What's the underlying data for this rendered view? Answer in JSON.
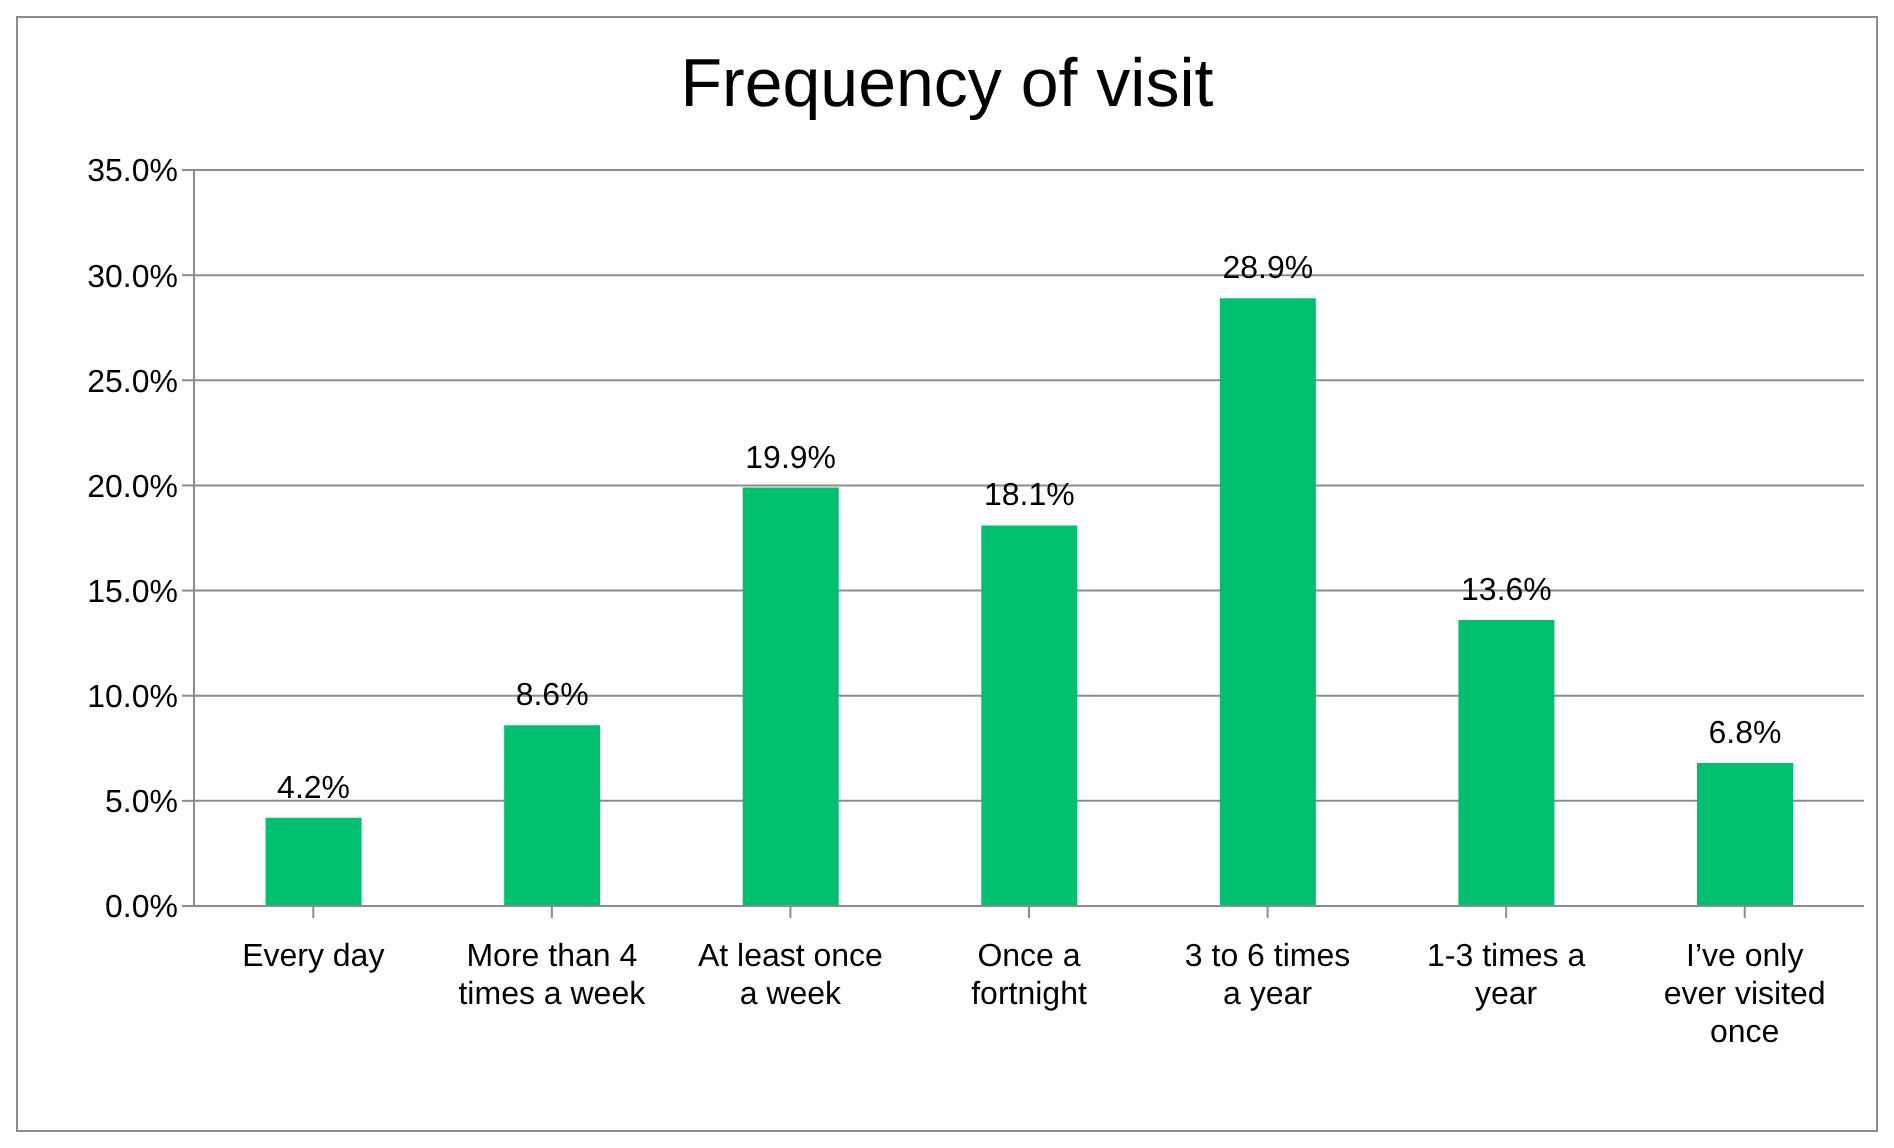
{
  "chart_data": {
    "type": "bar",
    "title": "Frequency of visit",
    "categories": [
      "Every day",
      "More than 4 times a week",
      "At least once a week",
      "Once a fortnight",
      "3 to 6 times a year",
      "1-3 times a year",
      "I’ve only ever visited once"
    ],
    "values": [
      4.2,
      8.6,
      19.9,
      18.1,
      28.9,
      13.6,
      6.8
    ],
    "value_labels": [
      "4.2%",
      "8.6%",
      "19.9%",
      "18.1%",
      "28.9%",
      "13.6%",
      "6.8%"
    ],
    "color": "#00c06f",
    "ylim": [
      0,
      35
    ],
    "yticks": [
      {
        "value": 0,
        "label": "0.0%"
      },
      {
        "value": 5,
        "label": "5.0%"
      },
      {
        "value": 10,
        "label": "10.0%"
      },
      {
        "value": 15,
        "label": "15.0%"
      },
      {
        "value": 20,
        "label": "20.0%"
      },
      {
        "value": 25,
        "label": "25.0%"
      },
      {
        "value": 30,
        "label": "30.0%"
      },
      {
        "value": 35,
        "label": "35.0%"
      }
    ],
    "grid": "y"
  }
}
